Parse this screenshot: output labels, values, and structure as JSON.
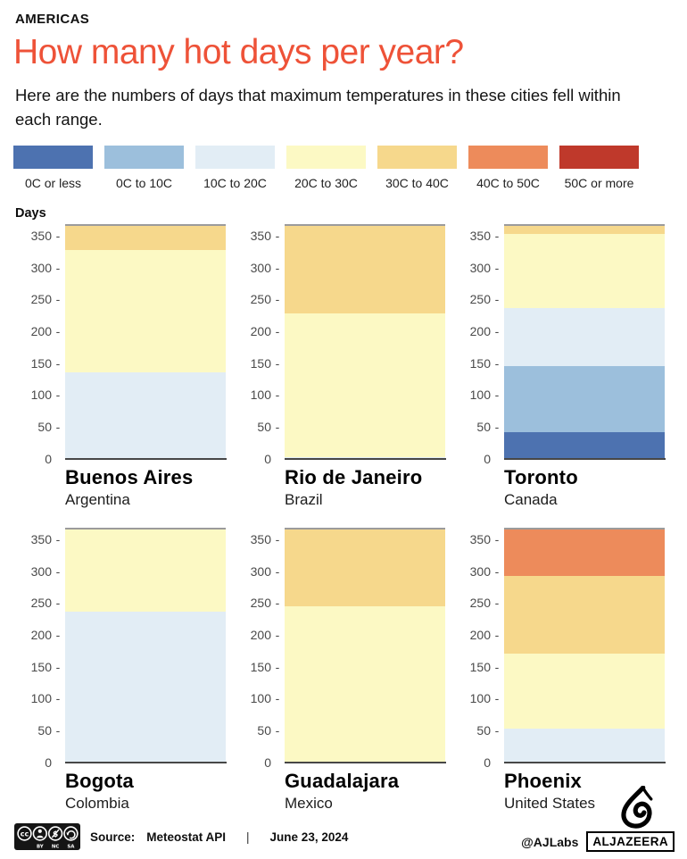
{
  "header": {
    "kicker": "AMERICAS",
    "title": "How many hot days per year?",
    "subtitle": "Here are the numbers of days that maximum temperatures in these cities fell within each range."
  },
  "legend": {
    "items": [
      {
        "label": "0C or less",
        "color": "#4d72b0"
      },
      {
        "label": "0C to 10C",
        "color": "#9cbfdc"
      },
      {
        "label": "10C to 20C",
        "color": "#e2edf5"
      },
      {
        "label": "20C to 30C",
        "color": "#fcf9c4"
      },
      {
        "label": "30C to 40C",
        "color": "#f6d88c"
      },
      {
        "label": "40C to 50C",
        "color": "#ed8b5b"
      },
      {
        "label": "50C or more",
        "color": "#bf392b"
      }
    ]
  },
  "chart_data": {
    "type": "bar",
    "stacked": true,
    "unit": "days",
    "ylabel": "Days",
    "yticks": [
      0,
      50,
      100,
      150,
      200,
      250,
      300,
      350
    ],
    "ylim": [
      0,
      367
    ],
    "bar_total": 365,
    "ranges": [
      "0C or less",
      "0C to 10C",
      "10C to 20C",
      "20C to 30C",
      "30C to 40C",
      "40C to 50C",
      "50C or more"
    ],
    "colors": {
      "0C or less": "#4d72b0",
      "0C to 10C": "#9cbfdc",
      "10C to 20C": "#e2edf5",
      "20C to 30C": "#fcf9c4",
      "30C to 40C": "#f6d88c",
      "40C to 50C": "#ed8b5b",
      "50C or more": "#bf392b"
    },
    "charts": [
      {
        "city": "Buenos Aires",
        "country": "Argentina",
        "segments": [
          {
            "range": "10C to 20C",
            "days": 135
          },
          {
            "range": "20C to 30C",
            "days": 192
          },
          {
            "range": "30C to 40C",
            "days": 38
          }
        ]
      },
      {
        "city": "Rio de Janeiro",
        "country": "Brazil",
        "segments": [
          {
            "range": "10C to 20C",
            "days": 3
          },
          {
            "range": "20C to 30C",
            "days": 225
          },
          {
            "range": "30C to 40C",
            "days": 137
          }
        ]
      },
      {
        "city": "Toronto",
        "country": "Canada",
        "segments": [
          {
            "range": "0C or less",
            "days": 42
          },
          {
            "range": "0C to 10C",
            "days": 104
          },
          {
            "range": "10C to 20C",
            "days": 91
          },
          {
            "range": "20C to 30C",
            "days": 115
          },
          {
            "range": "30C to 40C",
            "days": 13
          }
        ]
      },
      {
        "city": "Bogota",
        "country": "Colombia",
        "segments": [
          {
            "range": "10C to 20C",
            "days": 236
          },
          {
            "range": "20C to 30C",
            "days": 129
          }
        ]
      },
      {
        "city": "Guadalajara",
        "country": "Mexico",
        "segments": [
          {
            "range": "20C to 30C",
            "days": 245
          },
          {
            "range": "30C to 40C",
            "days": 120
          }
        ]
      },
      {
        "city": "Phoenix",
        "country": "United States",
        "segments": [
          {
            "range": "10C to 20C",
            "days": 53
          },
          {
            "range": "20C to 30C",
            "days": 117
          },
          {
            "range": "30C to 40C",
            "days": 122
          },
          {
            "range": "40C to 50C",
            "days": 73
          }
        ]
      }
    ]
  },
  "footer": {
    "license": "CC BY-NC-SA",
    "license_parts": [
      "CC",
      "BY",
      "NC",
      "SA"
    ],
    "source_label": "Source:",
    "source": "Meteostat API",
    "separator": "|",
    "date": "June 23, 2024",
    "credit": "@AJLabs",
    "brand": "ALJAZEERA"
  },
  "styles": {
    "title_color": "#ee5238",
    "tick_color": "#4a4a4a",
    "axis_color": "#474747",
    "bar_cap_color": "#9b9b9b"
  }
}
